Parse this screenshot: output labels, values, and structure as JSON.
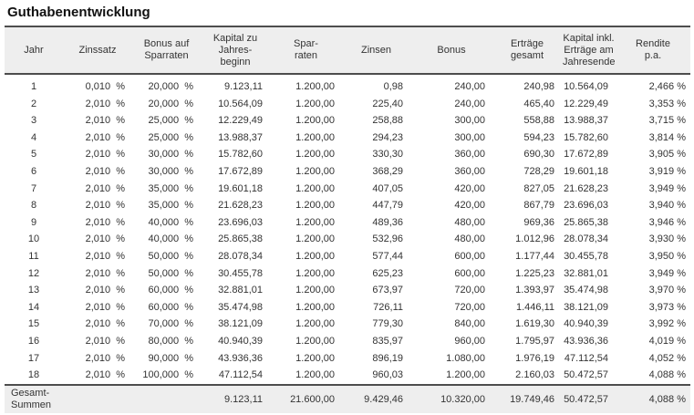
{
  "title": "Guthabenentwicklung",
  "colors": {
    "header_bg": "#eeeeee",
    "border": "#4d4d4d",
    "text": "#333333"
  },
  "table": {
    "columns": [
      "Jahr",
      "Zinssatz",
      "Bonus auf\nSparraten",
      "Kapital zu\nJahres-\nbeginn",
      "Spar-\nraten",
      "Zinsen",
      "Bonus",
      "Erträge\ngesamt",
      "Kapital inkl.\nErträge am\nJahresende",
      "Rendite\np.a."
    ],
    "rows": [
      [
        "1",
        "0,010  %",
        "20,000  %",
        "9.123,11",
        "1.200,00",
        "0,98",
        "240,00",
        "240,98",
        "10.564,09",
        "2,466 %"
      ],
      [
        "2",
        "2,010  %",
        "20,000  %",
        "10.564,09",
        "1.200,00",
        "225,40",
        "240,00",
        "465,40",
        "12.229,49",
        "3,353 %"
      ],
      [
        "3",
        "2,010  %",
        "25,000  %",
        "12.229,49",
        "1.200,00",
        "258,88",
        "300,00",
        "558,88",
        "13.988,37",
        "3,715 %"
      ],
      [
        "4",
        "2,010  %",
        "25,000  %",
        "13.988,37",
        "1.200,00",
        "294,23",
        "300,00",
        "594,23",
        "15.782,60",
        "3,814 %"
      ],
      [
        "5",
        "2,010  %",
        "30,000  %",
        "15.782,60",
        "1.200,00",
        "330,30",
        "360,00",
        "690,30",
        "17.672,89",
        "3,905 %"
      ],
      [
        "6",
        "2,010  %",
        "30,000  %",
        "17.672,89",
        "1.200,00",
        "368,29",
        "360,00",
        "728,29",
        "19.601,18",
        "3,919 %"
      ],
      [
        "7",
        "2,010  %",
        "35,000  %",
        "19.601,18",
        "1.200,00",
        "407,05",
        "420,00",
        "827,05",
        "21.628,23",
        "3,949 %"
      ],
      [
        "8",
        "2,010  %",
        "35,000  %",
        "21.628,23",
        "1.200,00",
        "447,79",
        "420,00",
        "867,79",
        "23.696,03",
        "3,940 %"
      ],
      [
        "9",
        "2,010  %",
        "40,000  %",
        "23.696,03",
        "1.200,00",
        "489,36",
        "480,00",
        "969,36",
        "25.865,38",
        "3,946 %"
      ],
      [
        "10",
        "2,010  %",
        "40,000  %",
        "25.865,38",
        "1.200,00",
        "532,96",
        "480,00",
        "1.012,96",
        "28.078,34",
        "3,930 %"
      ],
      [
        "11",
        "2,010  %",
        "50,000  %",
        "28.078,34",
        "1.200,00",
        "577,44",
        "600,00",
        "1.177,44",
        "30.455,78",
        "3,950 %"
      ],
      [
        "12",
        "2,010  %",
        "50,000  %",
        "30.455,78",
        "1.200,00",
        "625,23",
        "600,00",
        "1.225,23",
        "32.881,01",
        "3,949 %"
      ],
      [
        "13",
        "2,010  %",
        "60,000  %",
        "32.881,01",
        "1.200,00",
        "673,97",
        "720,00",
        "1.393,97",
        "35.474,98",
        "3,970 %"
      ],
      [
        "14",
        "2,010  %",
        "60,000  %",
        "35.474,98",
        "1.200,00",
        "726,11",
        "720,00",
        "1.446,11",
        "38.121,09",
        "3,973 %"
      ],
      [
        "15",
        "2,010  %",
        "70,000  %",
        "38.121,09",
        "1.200,00",
        "779,30",
        "840,00",
        "1.619,30",
        "40.940,39",
        "3,992 %"
      ],
      [
        "16",
        "2,010  %",
        "80,000  %",
        "40.940,39",
        "1.200,00",
        "835,97",
        "960,00",
        "1.795,97",
        "43.936,36",
        "4,019 %"
      ],
      [
        "17",
        "2,010  %",
        "90,000  %",
        "43.936,36",
        "1.200,00",
        "896,19",
        "1.080,00",
        "1.976,19",
        "47.112,54",
        "4,052 %"
      ],
      [
        "18",
        "2,010  %",
        "100,000  %",
        "47.112,54",
        "1.200,00",
        "960,03",
        "1.200,00",
        "2.160,03",
        "50.472,57",
        "4,088 %"
      ]
    ],
    "footer": [
      "Gesamt-\nSummen",
      "",
      "",
      "9.123,11",
      "21.600,00",
      "9.429,46",
      "10.320,00",
      "19.749,46",
      "50.472,57",
      "4,088 %"
    ]
  }
}
